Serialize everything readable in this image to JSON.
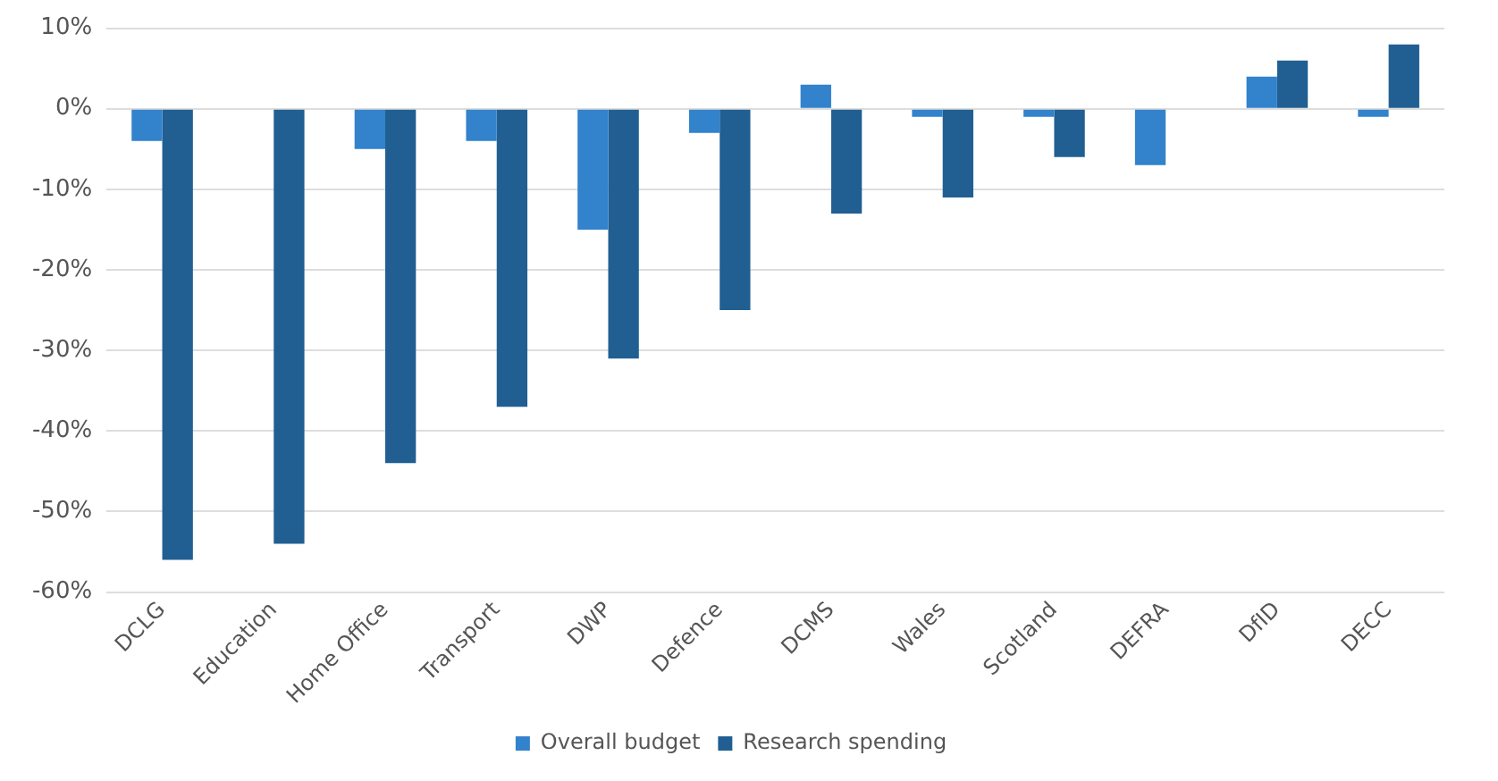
{
  "chart_data": {
    "type": "bar",
    "categories": [
      "DCLG",
      "Education",
      "Home Office",
      "Transport",
      "DWP",
      "Defence",
      "DCMS",
      "Wales",
      "Scotland",
      "DEFRA",
      "DfID",
      "DECC"
    ],
    "series": [
      {
        "name": "Overall budget",
        "color": "#3382cc",
        "values": [
          -4,
          0,
          -5,
          -4,
          -15,
          -3,
          3,
          -1,
          -1,
          -7,
          4,
          -1
        ]
      },
      {
        "name": "Research spending",
        "color": "#215f93",
        "values": [
          -56,
          -54,
          -44,
          -37,
          -31,
          -25,
          -13,
          -11,
          -6,
          0,
          6,
          8
        ]
      }
    ],
    "ylim": [
      -60,
      10
    ],
    "yticks": [
      {
        "value": -60,
        "label": "-60%"
      },
      {
        "value": -50,
        "label": "-50%"
      },
      {
        "value": -40,
        "label": "-40%"
      },
      {
        "value": -30,
        "label": "-30%"
      },
      {
        "value": -20,
        "label": "-20%"
      },
      {
        "value": -10,
        "label": "-10%"
      },
      {
        "value": 0,
        "label": "0%"
      },
      {
        "value": 10,
        "label": "10%"
      }
    ],
    "grid": "y",
    "legend": "bottom"
  }
}
